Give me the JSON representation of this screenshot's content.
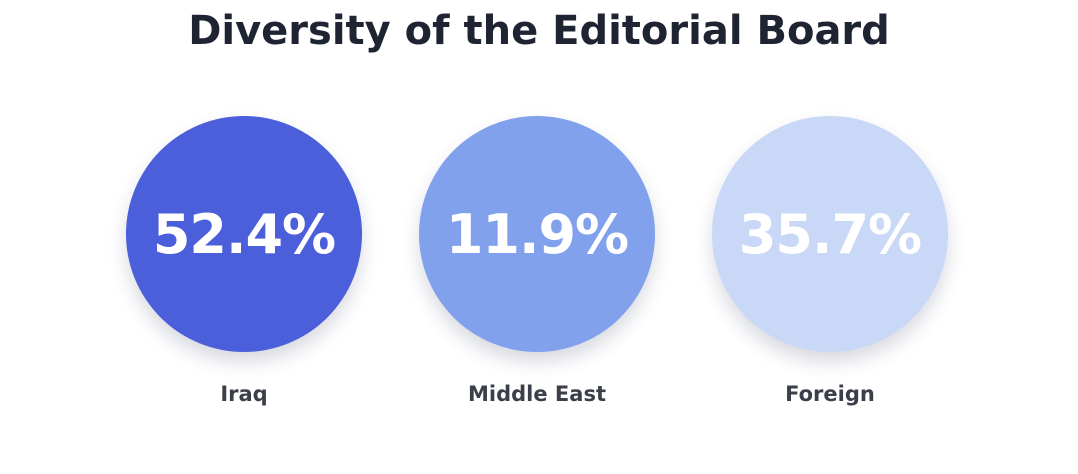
{
  "chart_data": {
    "type": "percentage-circles",
    "title": "Diversity of the Editorial Board",
    "categories": [
      "Iraq",
      "Middle East",
      "Foreign"
    ],
    "values": [
      52.4,
      11.9,
      35.7
    ],
    "value_labels": [
      "52.4%",
      "11.9%",
      "35.7%"
    ],
    "unit": "%",
    "colors": [
      "#4b5fdb",
      "#81a1ec",
      "#c9d8f6"
    ],
    "grid": false
  }
}
